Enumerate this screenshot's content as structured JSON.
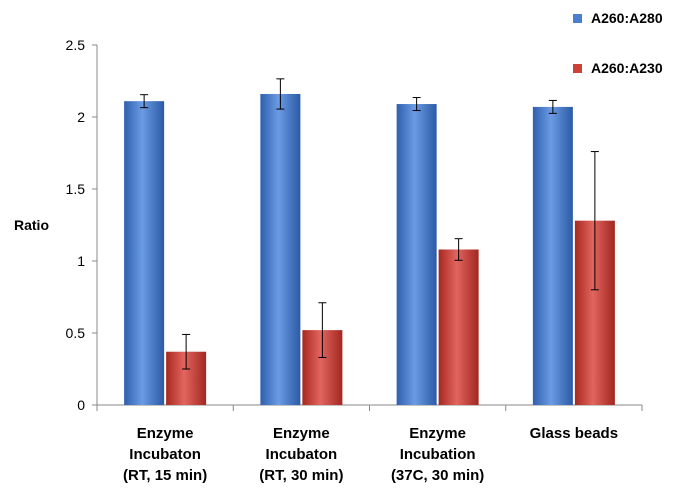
{
  "chart_data": {
    "type": "bar",
    "title": "",
    "xlabel": "",
    "ylabel": "Ratio",
    "ylim": [
      0,
      2.5
    ],
    "yticks": [
      0,
      0.5,
      1,
      1.5,
      2,
      2.5
    ],
    "ytick_labels": [
      "0",
      "0.5",
      "1",
      "1.5",
      "2",
      "2.5"
    ],
    "categories": [
      [
        "Enzyme",
        "Incubaton",
        "(RT, 15 min)"
      ],
      [
        "Enzyme",
        "Incubaton",
        "(RT, 30 min)"
      ],
      [
        "Enzyme",
        "Incubation",
        "(37C, 30 min)"
      ],
      [
        "Glass beads"
      ]
    ],
    "series": [
      {
        "name": "A260:A280",
        "color": "#4A7FD0",
        "values": [
          2.11,
          2.16,
          2.09,
          2.07
        ],
        "errors": [
          0.045,
          0.105,
          0.045,
          0.045
        ]
      },
      {
        "name": "A260:A230",
        "color": "#D0403A",
        "values": [
          0.37,
          0.52,
          1.08,
          1.28
        ],
        "errors": [
          0.12,
          0.19,
          0.075,
          0.48
        ]
      }
    ],
    "grid": false,
    "legend": "top-right"
  }
}
